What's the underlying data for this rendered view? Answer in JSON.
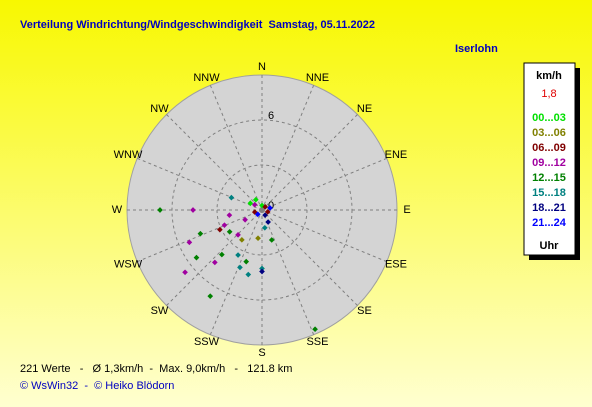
{
  "chart_data": {
    "type": "polar-scatter",
    "title": "Verteilung Windrichtung/Windgeschwindigkeit  Samstag, 05.11.2022",
    "location": "Iserlohn",
    "directions": [
      "N",
      "NNE",
      "NE",
      "ENE",
      "E",
      "ESE",
      "SE",
      "SSE",
      "S",
      "SSW",
      "SW",
      "WSW",
      "W",
      "WNW",
      "NW",
      "NNW"
    ],
    "rlim": [
      0,
      9
    ],
    "rticks": [
      0,
      6
    ],
    "grid_rings": [
      3,
      6
    ],
    "legend_title": "km/h",
    "current": {
      "value": 1.8,
      "label": "1,8"
    },
    "legend_footer": "Uhr",
    "series": [
      {
        "name": "00...03",
        "color": "#00e000",
        "direction": [
          300,
          329,
          0
        ],
        "values": [
          0.9,
          0.8,
          0.3
        ]
      },
      {
        "name": "03...06",
        "color": "#808000",
        "direction": [
          214,
          188
        ],
        "values": [
          2.4,
          1.9
        ]
      },
      {
        "name": "06...09",
        "color": "#800000",
        "direction": [
          45,
          108,
          254,
          245
        ],
        "values": [
          0.3,
          0.4,
          0.5,
          3.1
        ]
      },
      {
        "name": "09...12",
        "color": "#a000a0",
        "direction": [
          270,
          231,
          246,
          222,
          261,
          240,
          224,
          306,
          248
        ],
        "values": [
          4.6,
          6.6,
          5.3,
          4.7,
          2.2,
          1.3,
          2.3,
          0.6,
          2.7
        ]
      },
      {
        "name": "12...15",
        "color": "#008000",
        "direction": [
          270,
          211,
          222,
          234,
          156,
          162,
          236,
          197,
          249
        ],
        "values": [
          6.8,
          6.7,
          4.0,
          5.4,
          8.7,
          2.1,
          2.6,
          3.6,
          4.4
        ]
      },
      {
        "name": "15...18",
        "color": "#008080",
        "direction": [
          208,
          192,
          292,
          171,
          201,
          180
        ],
        "values": [
          3.4,
          4.4,
          2.2,
          1.2,
          4.1,
          3.9
        ]
      },
      {
        "name": "18...21",
        "color": "#000080",
        "direction": [
          180,
          153,
          149
        ],
        "values": [
          4.1,
          0.9,
          0.4
        ]
      },
      {
        "name": "21...24",
        "color": "#0000ff",
        "direction": [
          225,
          76
        ],
        "values": [
          0.4,
          0.55
        ]
      }
    ],
    "footer": [
      "221 Werte   -   Ø 1,3km/h  -  Max. 9,0km/h   -   121.8 km",
      "© WsWin32  -  © Heiko Blödorn"
    ]
  }
}
